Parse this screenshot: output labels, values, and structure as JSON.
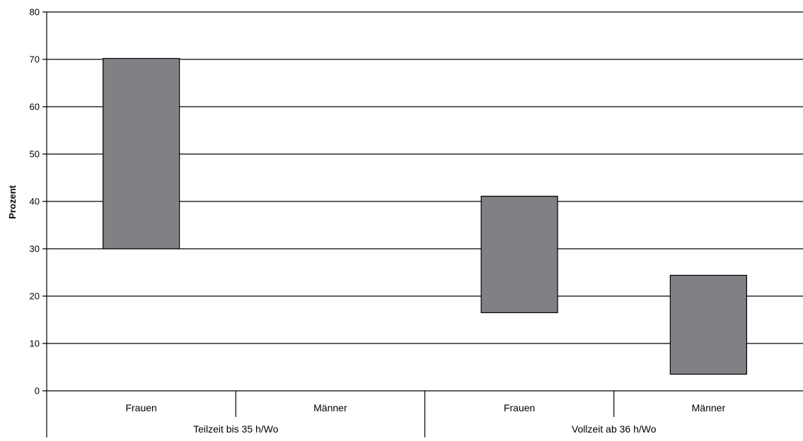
{
  "chart_data": {
    "type": "bar",
    "subtype": "floating-range",
    "ylabel": "Prozent",
    "ylim": [
      0,
      80
    ],
    "yticks": [
      0,
      10,
      20,
      30,
      40,
      50,
      60,
      70,
      80
    ],
    "grid": true,
    "groups": [
      {
        "label": "Teilzeit bis 35 h/Wo",
        "categories": [
          {
            "label": "Frauen",
            "low": 30,
            "high": 70.2
          },
          {
            "label": "Männer",
            "low": null,
            "high": null
          }
        ]
      },
      {
        "label": "Vollzeit ab 36 h/Wo",
        "categories": [
          {
            "label": "Frauen",
            "low": 16.5,
            "high": 41.1
          },
          {
            "label": "Männer",
            "low": 3.5,
            "high": 24.4
          }
        ]
      }
    ],
    "bar_color": "#808085",
    "bar_border_color": "#000000"
  }
}
